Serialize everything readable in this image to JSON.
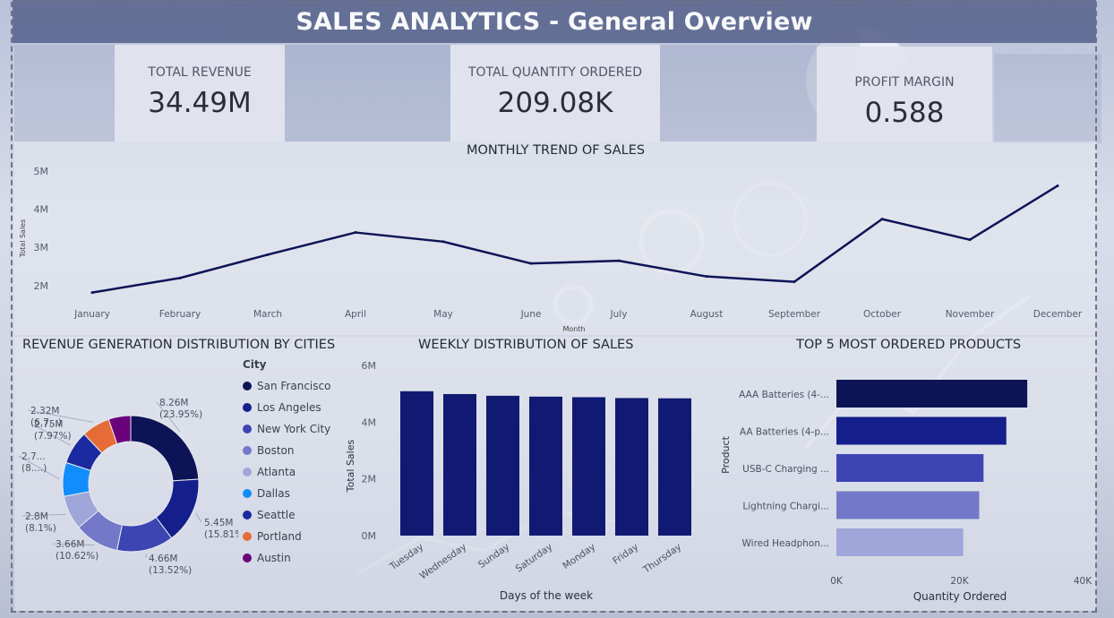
{
  "title": "SALES ANALYTICS - General Overview",
  "kpis": [
    {
      "label": "TOTAL REVENUE",
      "value": "34.49M"
    },
    {
      "label": "TOTAL QUANTITY ORDERED",
      "value": "209.08K"
    },
    {
      "label": "PROFIT MARGIN",
      "value": "0.588"
    }
  ],
  "monthly": {
    "title": "MONTHLY TREND OF SALES",
    "ylabel": "Total Sales",
    "xlabel": "Month",
    "yticks": [
      "2M",
      "3M",
      "4M",
      "5M"
    ]
  },
  "cities": {
    "title": "REVENUE GENERATION DISTRIBUTION BY CITIES",
    "legend_title": "City"
  },
  "weekly": {
    "title": "WEEKLY DISTRIBUTION OF SALES",
    "ylabel": "Total Sales",
    "xlabel": "Days of the week",
    "yticks": [
      "0M",
      "2M",
      "4M",
      "6M"
    ]
  },
  "products": {
    "title": "TOP 5 MOST ORDERED PRODUCTS",
    "ylabel": "Product",
    "xlabel": "Quantity Ordered",
    "xticks": [
      "0K",
      "20K",
      "40K"
    ]
  },
  "chart_data": [
    {
      "type": "line",
      "title": "MONTHLY TREND OF SALES",
      "xlabel": "Month",
      "ylabel": "Total Sales",
      "categories": [
        "January",
        "February",
        "March",
        "April",
        "May",
        "June",
        "July",
        "August",
        "September",
        "October",
        "November",
        "December"
      ],
      "values": [
        1.82,
        2.2,
        2.81,
        3.39,
        3.15,
        2.58,
        2.65,
        2.24,
        2.1,
        3.74,
        3.2,
        4.61
      ],
      "unit": "M",
      "ylim": [
        1.6,
        5.3
      ],
      "color": "#0d1456"
    },
    {
      "type": "pie",
      "title": "REVENUE GENERATION DISTRIBUTION BY CITIES",
      "legend_title": "City",
      "categories": [
        "San Francisco",
        "Los Angeles",
        "New York City",
        "Boston",
        "Atlanta",
        "Dallas",
        "Seattle",
        "Portland",
        "Austin"
      ],
      "values": [
        8.26,
        5.45,
        4.66,
        3.66,
        2.8,
        2.77,
        2.75,
        2.32,
        1.82
      ],
      "labels": [
        "8.26M (23.95%)",
        "5.45M (15.81%)",
        "4.66M (13.52%)",
        "3.66M (10.62%)",
        "2.8M (8.1%)",
        "2.7... (8....)",
        "2.75M (7.97%)",
        "2.32M (6.7...)",
        ""
      ],
      "colors": [
        "#0d1456",
        "#141f8c",
        "#3d45b3",
        "#7379c8",
        "#9fa6d9",
        "#118dff",
        "#1b2a9e",
        "#e66c37",
        "#6b007b"
      ]
    },
    {
      "type": "bar",
      "title": "WEEKLY DISTRIBUTION OF SALES",
      "xlabel": "Days of the week",
      "ylabel": "Total Sales",
      "categories": [
        "Tuesday",
        "Wednesday",
        "Sunday",
        "Saturday",
        "Monday",
        "Friday",
        "Thursday"
      ],
      "values": [
        5.09,
        4.99,
        4.93,
        4.9,
        4.88,
        4.85,
        4.84
      ],
      "unit": "M",
      "ylim": [
        0,
        6
      ],
      "color": "#111a72"
    },
    {
      "type": "bar",
      "orientation": "horizontal",
      "title": "TOP 5 MOST ORDERED PRODUCTS",
      "xlabel": "Quantity Ordered",
      "ylabel": "Product",
      "categories": [
        "AAA Batteries (4-...",
        "AA Batteries (4-p...",
        "USB-C Charging ...",
        "Lightning Chargi...",
        "Wired Headphon..."
      ],
      "values": [
        31.0,
        27.6,
        23.9,
        23.2,
        20.6
      ],
      "unit": "K",
      "xlim": [
        0,
        40
      ],
      "colors": [
        "#0d1456",
        "#141f8c",
        "#3d45b3",
        "#7379c8",
        "#9fa6d9"
      ]
    }
  ]
}
